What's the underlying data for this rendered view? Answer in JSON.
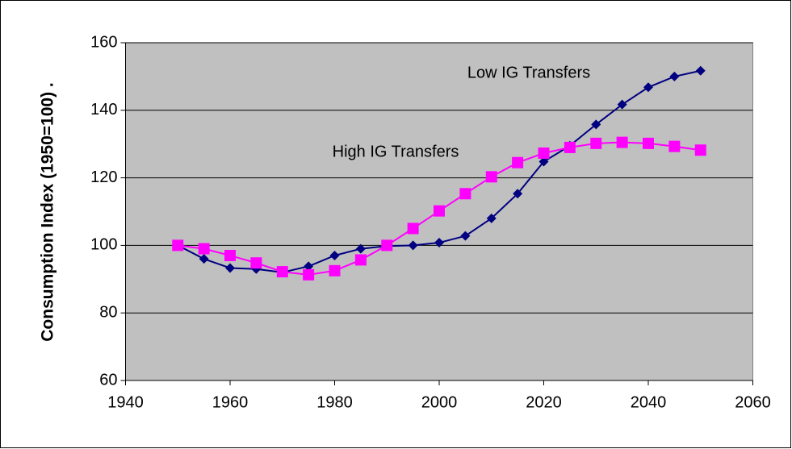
{
  "chart_data": {
    "type": "line",
    "y_label": "Consumption Index (1950=100)  .",
    "x": [
      1950,
      1955,
      1960,
      1965,
      1970,
      1975,
      1980,
      1985,
      1990,
      1995,
      2000,
      2005,
      2010,
      2015,
      2020,
      2025,
      2030,
      2035,
      2040,
      2045,
      2050
    ],
    "series": [
      {
        "name": "Low IG Transfers",
        "color": "#000080",
        "marker": "diamond",
        "values": [
          100,
          96,
          93.3,
          93,
          92,
          93.8,
          97,
          99,
          99.8,
          100,
          100.8,
          102.8,
          108,
          115.3,
          124.8,
          129.5,
          135.8,
          141.7,
          146.8,
          150,
          151.7
        ]
      },
      {
        "name": "High IG Transfers",
        "color": "#ff00ff",
        "marker": "square",
        "values": [
          100,
          99,
          97,
          94.8,
          92.2,
          91.3,
          92.5,
          95.7,
          100,
          105,
          110.2,
          115.3,
          120.3,
          124.5,
          127.3,
          129,
          130.2,
          130.5,
          130.2,
          129.3,
          128.2
        ]
      }
    ],
    "xlim": [
      1940,
      2060
    ],
    "xticks": [
      1940,
      1960,
      1980,
      2000,
      2020,
      2040,
      2060
    ],
    "ylim": [
      60,
      160
    ],
    "yticks": [
      60,
      80,
      100,
      120,
      140,
      160
    ],
    "grid": true,
    "plot_background": "#c0c0c0"
  }
}
